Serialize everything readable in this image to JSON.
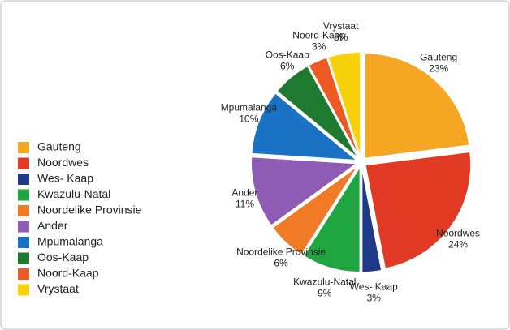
{
  "chart_data": {
    "type": "pie",
    "categories": [
      "Gauteng",
      "Noordwes",
      "Wes- Kaap",
      "Kwazulu-Natal",
      "Noordelike Provinsie",
      "Ander",
      "Mpumalanga",
      "Oos-Kaap",
      "Noord-Kaap",
      "Vrystaat"
    ],
    "values": [
      23,
      24,
      3,
      9,
      6,
      11,
      10,
      6,
      3,
      5
    ],
    "value_labels": [
      "23%",
      "24%",
      "3%",
      "9%",
      "6%",
      "11%",
      "10%",
      "6%",
      "3%",
      "5%"
    ],
    "colors": [
      "#f5a623",
      "#e03a25",
      "#1f3a8a",
      "#1fa640",
      "#f07a25",
      "#8e5bb5",
      "#1a72c4",
      "#1e7a30",
      "#ee5a24",
      "#f7d20a"
    ],
    "legend": "left"
  }
}
